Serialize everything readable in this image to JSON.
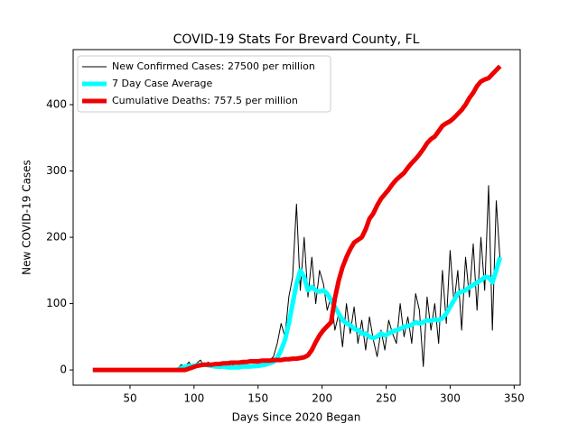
{
  "chart_data": {
    "type": "line",
    "title": "COVID-19 Stats For Brevard County, FL",
    "x_label": "Days Since 2020 Began",
    "y_label": "New COVID-19 Cases",
    "xlim": [
      5.6,
      354.7
    ],
    "ylim": [
      -23,
      483
    ],
    "xticks": [
      50,
      100,
      150,
      200,
      250,
      300,
      350
    ],
    "yticks": [
      0,
      100,
      200,
      300,
      400
    ],
    "legend": "upper left",
    "x": [
      21,
      24,
      27,
      30,
      33,
      36,
      39,
      42,
      45,
      48,
      51,
      54,
      57,
      60,
      63,
      66,
      69,
      72,
      75,
      78,
      81,
      84,
      87,
      90,
      93,
      96,
      99,
      102,
      105,
      108,
      111,
      114,
      117,
      120,
      123,
      126,
      129,
      132,
      135,
      138,
      141,
      144,
      147,
      150,
      153,
      156,
      159,
      162,
      165,
      168,
      171,
      174,
      177,
      180,
      183,
      186,
      189,
      192,
      195,
      198,
      201,
      204,
      207,
      210,
      213,
      216,
      219,
      222,
      225,
      228,
      231,
      234,
      237,
      240,
      243,
      246,
      249,
      252,
      255,
      258,
      261,
      264,
      267,
      270,
      273,
      276,
      279,
      282,
      285,
      288,
      291,
      294,
      297,
      300,
      303,
      306,
      309,
      312,
      315,
      318,
      321,
      324,
      327,
      330,
      333,
      336,
      339
    ],
    "series": [
      {
        "name": "New Confirmed Cases: 27500 per million",
        "color": "#000000",
        "width": 1,
        "values": [
          0,
          0,
          0,
          0,
          0,
          0,
          0,
          0,
          0,
          0,
          0,
          0,
          0,
          0,
          0,
          0,
          0,
          0,
          0,
          0,
          0,
          0,
          2,
          8,
          5,
          12,
          3,
          10,
          15,
          6,
          12,
          4,
          8,
          2,
          6,
          3,
          9,
          5,
          2,
          10,
          4,
          7,
          3,
          12,
          5,
          8,
          15,
          20,
          40,
          70,
          50,
          110,
          140,
          250,
          120,
          200,
          110,
          170,
          100,
          150,
          130,
          90,
          110,
          60,
          85,
          35,
          100,
          55,
          95,
          40,
          75,
          30,
          80,
          45,
          20,
          60,
          30,
          75,
          55,
          40,
          100,
          50,
          80,
          40,
          115,
          90,
          5,
          110,
          60,
          100,
          40,
          150,
          70,
          180,
          100,
          150,
          60,
          170,
          110,
          190,
          90,
          200,
          120,
          278,
          60,
          255,
          165
        ]
      },
      {
        "name": "7 Day Case Average",
        "color": "#00ffff",
        "width": 5,
        "values": [
          null,
          null,
          null,
          null,
          null,
          null,
          null,
          null,
          null,
          null,
          null,
          null,
          null,
          null,
          null,
          null,
          null,
          null,
          null,
          null,
          null,
          null,
          0,
          3,
          5,
          6,
          6,
          7,
          8,
          8,
          7,
          6,
          5,
          5,
          5,
          4,
          4,
          4,
          4,
          5,
          5,
          5,
          6,
          6,
          7,
          8,
          10,
          12,
          18,
          30,
          45,
          70,
          100,
          130,
          150,
          140,
          120,
          125,
          120,
          118,
          120,
          115,
          105,
          95,
          85,
          75,
          70,
          68,
          62,
          60,
          55,
          55,
          50,
          48,
          50,
          55,
          52,
          55,
          58,
          60,
          62,
          65,
          66,
          68,
          72,
          70,
          72,
          75,
          74,
          76,
          75,
          78,
          85,
          95,
          105,
          115,
          118,
          120,
          125,
          128,
          132,
          135,
          140,
          140,
          132,
          150,
          170
        ]
      },
      {
        "name": "Cumulative Deaths: 757.5 per million",
        "color": "#ee0000",
        "width": 5,
        "values": [
          0,
          0,
          0,
          0,
          0,
          0,
          0,
          0,
          0,
          0,
          0,
          0,
          0,
          0,
          0,
          0,
          0,
          0,
          0,
          0,
          0,
          0,
          0,
          0,
          0,
          2,
          4,
          6,
          7,
          8,
          8,
          8,
          9,
          9,
          10,
          10,
          11,
          11,
          11,
          12,
          12,
          13,
          13,
          13,
          14,
          14,
          14,
          15,
          15,
          15,
          16,
          16,
          17,
          17,
          18,
          19,
          22,
          30,
          42,
          52,
          60,
          66,
          72,
          108,
          135,
          155,
          170,
          182,
          192,
          196,
          200,
          212,
          228,
          236,
          248,
          258,
          265,
          272,
          280,
          287,
          292,
          297,
          305,
          312,
          318,
          325,
          333,
          342,
          348,
          352,
          360,
          368,
          372,
          375,
          380,
          386,
          392,
          400,
          410,
          418,
          428,
          435,
          438,
          440,
          446,
          452,
          458
        ]
      }
    ]
  }
}
